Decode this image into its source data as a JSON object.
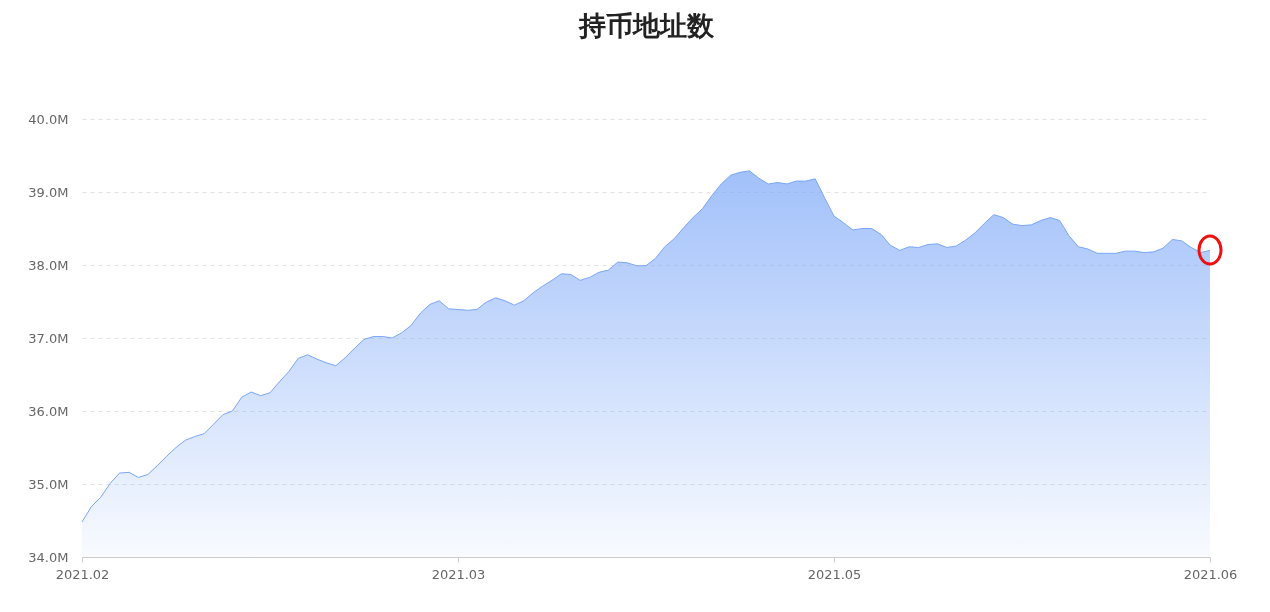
{
  "chart_data": {
    "type": "area",
    "title": "持币地址数",
    "categories": [
      "2021.02",
      null,
      null,
      null,
      null,
      null,
      null,
      null,
      null,
      null,
      null,
      null,
      null,
      null,
      null,
      null,
      null,
      null,
      null,
      null,
      null,
      null,
      null,
      null,
      null,
      null,
      null,
      null,
      null,
      null,
      null,
      null,
      null,
      null,
      null,
      null,
      null,
      null,
      null,
      null,
      "2021.03",
      null,
      null,
      null,
      null,
      null,
      null,
      null,
      null,
      null,
      null,
      null,
      null,
      null,
      null,
      null,
      null,
      null,
      null,
      null,
      null,
      null,
      null,
      null,
      null,
      null,
      null,
      null,
      null,
      null,
      null,
      null,
      null,
      null,
      null,
      null,
      null,
      null,
      null,
      null,
      "2021.05",
      null,
      null,
      null,
      null,
      null,
      null,
      null,
      null,
      null,
      null,
      null,
      null,
      null,
      null,
      null,
      null,
      null,
      null,
      null,
      null,
      null,
      null,
      null,
      null,
      null,
      null,
      null,
      null,
      null,
      null,
      null,
      null,
      null,
      null,
      null,
      null,
      null,
      null,
      null,
      "2021.06"
    ],
    "series": [
      {
        "color": "#7aa6f8",
        "values": [
          34.48,
          34.69,
          34.82,
          35.01,
          35.15,
          35.16,
          35.09,
          35.13,
          35.25,
          35.38,
          35.5,
          35.6,
          35.65,
          35.69,
          35.82,
          35.95,
          36.0,
          36.19,
          36.26,
          36.21,
          36.25,
          36.4,
          36.54,
          36.72,
          36.77,
          36.71,
          36.66,
          36.62,
          36.73,
          36.86,
          36.98,
          37.02,
          37.02,
          37.0,
          37.07,
          37.17,
          37.34,
          37.46,
          37.51,
          37.4,
          37.39,
          37.38,
          37.39,
          37.49,
          37.55,
          37.51,
          37.45,
          37.51,
          37.62,
          37.71,
          37.79,
          37.88,
          37.87,
          37.79,
          37.83,
          37.9,
          37.93,
          38.04,
          38.03,
          37.99,
          37.99,
          38.09,
          38.25,
          38.36,
          38.51,
          38.65,
          38.77,
          38.95,
          39.11,
          39.23,
          39.27,
          39.29,
          39.19,
          39.11,
          39.13,
          39.11,
          39.15,
          39.15,
          39.18,
          38.92,
          38.67,
          38.58,
          38.48,
          38.5,
          38.5,
          38.42,
          38.27,
          38.2,
          38.25,
          38.24,
          38.28,
          38.29,
          38.24,
          38.26,
          38.34,
          38.44,
          38.57,
          38.69,
          38.65,
          38.56,
          38.54,
          38.55,
          38.61,
          38.65,
          38.61,
          38.4,
          38.25,
          38.22,
          38.16,
          38.16,
          38.16,
          38.19,
          38.19,
          38.17,
          38.18,
          38.23,
          38.35,
          38.33,
          38.24,
          38.17,
          38.2
        ]
      }
    ],
    "ylim": [
      34,
      40
    ],
    "yticks": [
      {
        "value": 34,
        "label": "34.0M"
      },
      {
        "value": 35,
        "label": "35.0M"
      },
      {
        "value": 36,
        "label": "36.0M"
      },
      {
        "value": 37,
        "label": "37.0M"
      },
      {
        "value": 38,
        "label": "38.0M"
      },
      {
        "value": 39,
        "label": "39.0M"
      },
      {
        "value": 40,
        "label": "40.0M"
      }
    ],
    "grid": "y"
  }
}
